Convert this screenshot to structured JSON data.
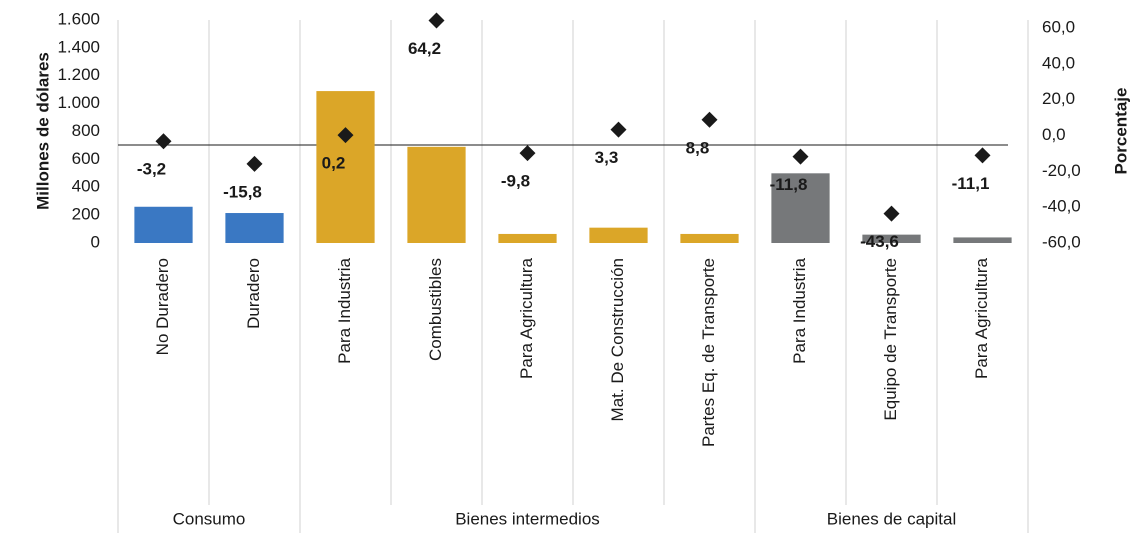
{
  "chart_data": {
    "type": "bar",
    "y_label": "Millones de dólares",
    "y2_label": "Porcentaje",
    "groups": [
      {
        "label": "Consumo",
        "color": "#3a78c3",
        "categories": [
          "No Duradero",
          "Duradero"
        ]
      },
      {
        "label": "Bienes intermedios",
        "color": "#dba628",
        "categories": [
          "Para Industria",
          "Combustibles",
          "Para Agricultura",
          "Mat. De Construcción",
          "Partes Eq. de Transporte"
        ]
      },
      {
        "label": "Bienes de capital",
        "color": "#76787a",
        "categories": [
          "Para Industria",
          "Equipo de Transporte",
          "Para Agricultura"
        ]
      }
    ],
    "series": [
      {
        "values": [
          260,
          215,
          1090,
          690,
          65,
          110,
          65,
          500,
          60,
          40
        ]
      },
      {
        "type": "scatter",
        "axis": "y2",
        "color": "#1a1a1a",
        "values": [
          -3.2,
          -15.8,
          0.2,
          64.2,
          -9.8,
          3.3,
          8.8,
          -11.8,
          -43.6,
          -11.1
        ],
        "value_labels": [
          "-3,2",
          "-15,8",
          "0,2",
          "64,2",
          "-9,8",
          "3,3",
          "8,8",
          "-11,8",
          "-43,6",
          "-11,1"
        ]
      }
    ],
    "ylim": [
      0,
      1600
    ],
    "yticks": [
      0,
      200,
      400,
      600,
      800,
      {
        "value": 1000,
        "label": "1.000"
      },
      {
        "value": 1200,
        "label": "1.200"
      },
      {
        "value": 1400,
        "label": "1.400"
      },
      {
        "value": 1600,
        "label": "1.600"
      }
    ],
    "y2lim": [
      -60,
      64.5
    ],
    "y2ticks": [
      {
        "value": -60,
        "label": "-60,0"
      },
      {
        "value": -40,
        "label": "-40,0"
      },
      {
        "value": -20,
        "label": "-20,0"
      },
      {
        "value": 0,
        "label": "0,0"
      },
      {
        "value": 20,
        "label": "20,0"
      },
      {
        "value": 40,
        "label": "40,0"
      },
      {
        "value": 60,
        "label": "60,0"
      }
    ]
  }
}
